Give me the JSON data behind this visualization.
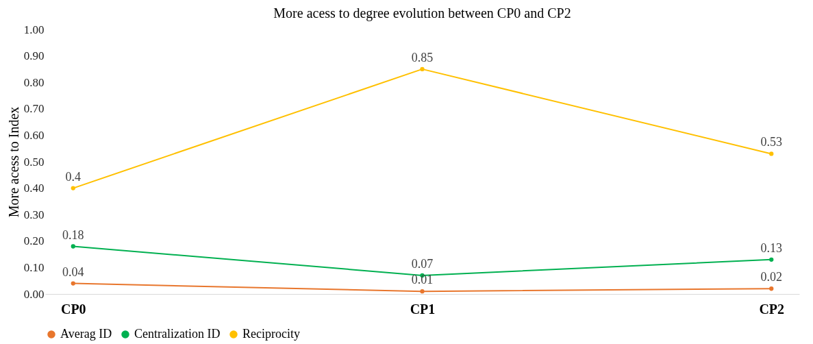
{
  "chart_data": {
    "type": "line",
    "title": "More acess to degree evolution between CP0 and CP2",
    "ylabel": "More acess to Index",
    "categories": [
      "CP0",
      "CP1",
      "CP2"
    ],
    "series": [
      {
        "name": "Averag ID",
        "color": "#e8762d",
        "values": [
          0.04,
          0.01,
          0.02
        ]
      },
      {
        "name": "Centralization ID",
        "color": "#00b050",
        "values": [
          0.18,
          0.07,
          0.13
        ]
      },
      {
        "name": "Reciprocity",
        "color": "#ffc000",
        "values": [
          0.4,
          0.85,
          0.53
        ]
      }
    ],
    "ylim": [
      0,
      1
    ],
    "yticks": [
      {
        "value": 0,
        "label": "0.00"
      },
      {
        "value": 0.1,
        "label": "0.10"
      },
      {
        "value": 0.2,
        "label": "0.20"
      },
      {
        "value": 0.3,
        "label": "0.30"
      },
      {
        "value": 0.4,
        "label": "0.40"
      },
      {
        "value": 0.5,
        "label": "0.50"
      },
      {
        "value": 0.6,
        "label": "0.60"
      },
      {
        "value": 0.7,
        "label": "0.70"
      },
      {
        "value": 0.8,
        "label": "0.80"
      },
      {
        "value": 0.9,
        "label": "0.90"
      },
      {
        "value": 1,
        "label": "1.00"
      }
    ],
    "data_labels": true,
    "legend": "bottom",
    "grid": false,
    "marker": "circle",
    "line_style": "solid"
  }
}
